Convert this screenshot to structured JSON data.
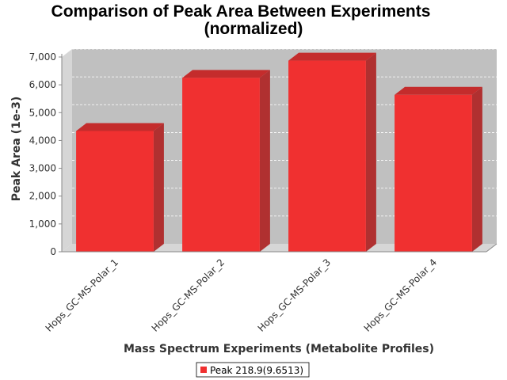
{
  "chart_data": {
    "type": "bar",
    "title": "Comparison of Peak Area Between Experiments",
    "subtitle": "(normalized)",
    "xlabel": "Mass Spectrum Experiments (Metabolite Profiles)",
    "ylabel": "Peak Area (1e-3)",
    "categories": [
      "Hops_GC-MS-Polar_1",
      "Hops_GC-MS-Polar_2",
      "Hops_GC-MS-Polar_3",
      "Hops_GC-MS-Polar_4"
    ],
    "series": [
      {
        "name": "Peak 218.9(9.6513)",
        "values": [
          4340,
          6250,
          6870,
          5640
        ]
      }
    ],
    "ylim": [
      0,
      7000
    ],
    "yticks": [
      "0",
      "1,000",
      "2,000",
      "3,000",
      "4,000",
      "5,000",
      "6,000",
      "7,000"
    ],
    "grid": true,
    "three_d": true,
    "legend_position": "bottom",
    "colors": {
      "bar_front": "#f03030",
      "bar_top": "#c42c2c",
      "bar_side": "#b03030",
      "plot_back": "#c0c0c0",
      "plot_wall": "#d6d6d6",
      "grid": "#ffffff"
    }
  }
}
